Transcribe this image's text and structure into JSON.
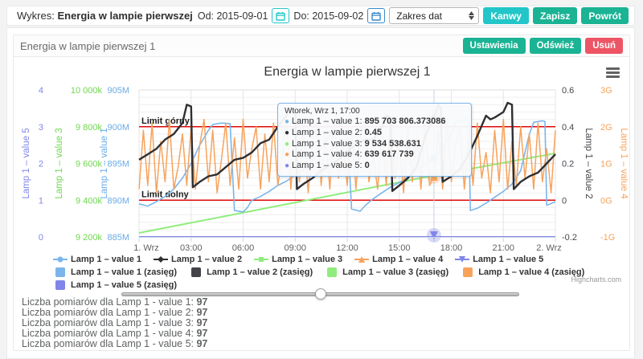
{
  "topbar": {
    "title_prefix": "Wykres:",
    "title_bold": "Energia w lampie pierwszej",
    "od_label": "Od: 2015-09-01",
    "do_label": "Do: 2015-09-02",
    "range_select_value": "Zakres dat",
    "buttons": {
      "kanwy": "Kanwy",
      "zapisz": "Zapisz",
      "powrot": "Powrót"
    }
  },
  "panel": {
    "title": "Energia w lampie pierwszej 1",
    "buttons": {
      "ustawienia": "Ustawienia",
      "odswiez": "Odśwież",
      "usun": "Usuń"
    }
  },
  "colors": {
    "primary": "#1ab394",
    "info": "#23c6c8",
    "danger": "#ed5565",
    "series1": "#7cb5ec",
    "series2": "#2f2f33",
    "series3": "#90ed7d",
    "series4": "#f7a35c",
    "series5": "#8085e9",
    "plotline": "#e00707"
  },
  "chart_data": {
    "type": "line",
    "title": "Energia w lampie pierwszej 1",
    "x_range": [
      0,
      24
    ],
    "x_ticks": [
      {
        "h": 0,
        "label": "1. Wrz"
      },
      {
        "h": 3,
        "label": "03:00"
      },
      {
        "h": 6,
        "label": "06:00"
      },
      {
        "h": 9,
        "label": "09:00"
      },
      {
        "h": 12,
        "label": "12:00"
      },
      {
        "h": 15,
        "label": "15:00"
      },
      {
        "h": 18,
        "label": "18:00"
      },
      {
        "h": 21,
        "label": "21:00"
      },
      {
        "h": 24,
        "label": "2. Wrz"
      }
    ],
    "axes": [
      {
        "id": "v5",
        "side": "left",
        "color": "#8085e9",
        "title": "Lamp 1 – value 5",
        "range": [
          0,
          4
        ],
        "ticks": [
          "0",
          "1",
          "2",
          "3",
          "4"
        ]
      },
      {
        "id": "v3",
        "side": "left",
        "color": "#6fd84f",
        "title": "Lamp 1 – value 3",
        "range": [
          9200,
          10000
        ],
        "ticks": [
          "9 200k",
          "9 400k",
          "9 600k",
          "9 800k",
          "10 000k"
        ]
      },
      {
        "id": "v1",
        "side": "left",
        "color": "#6aabe8",
        "title": "Lamp 1 – value 1",
        "range": [
          885,
          905
        ],
        "ticks": [
          "885M",
          "890M",
          "895M",
          "900M",
          "905M"
        ]
      },
      {
        "id": "v2",
        "side": "right",
        "color": "#47474d",
        "title": "Lamp 1 – value 2",
        "range": [
          -0.2,
          0.6
        ],
        "ticks": [
          "-0.2",
          "0",
          "0.2",
          "0.4",
          "0.6"
        ]
      },
      {
        "id": "v4",
        "side": "right",
        "color": "#f7a35c",
        "title": "Lamp 1 – value 4",
        "range": [
          -1,
          3
        ],
        "ticks": [
          "-1G",
          "0G",
          "1G",
          "2G",
          "3G"
        ]
      }
    ],
    "plot_lines": [
      {
        "axis": "v1",
        "value": 900,
        "label": "Limit górny",
        "color": "#e00707"
      },
      {
        "axis": "v1",
        "value": 890,
        "label": "Limit dolny",
        "color": "#e00707"
      }
    ],
    "series": [
      {
        "name": "Lamp 1 – value 3",
        "axis": "v3",
        "color": "#90ed7d",
        "width": 2,
        "points": [
          [
            0,
            9222
          ],
          [
            17,
            9534.5
          ],
          [
            24,
            9655
          ]
        ]
      },
      {
        "name": "Lamp 1 – value 1",
        "axis": "v1",
        "color": "#7cb5ec",
        "width": 1.6,
        "points": [
          [
            0,
            889.5
          ],
          [
            0.5,
            889.2
          ],
          [
            1,
            889.8
          ],
          [
            1.5,
            890.5
          ],
          [
            2,
            891.5
          ],
          [
            2.5,
            893
          ],
          [
            3,
            895
          ],
          [
            3.5,
            897.5
          ],
          [
            4,
            899.5
          ],
          [
            4.25,
            900.3
          ],
          [
            4.75,
            900.5
          ],
          [
            5.25,
            900.4
          ],
          [
            5.5,
            888.6
          ],
          [
            6,
            888.4
          ],
          [
            6.25,
            889
          ],
          [
            6.5,
            890
          ],
          [
            7,
            890.5
          ],
          [
            7.5,
            891.2
          ],
          [
            8,
            892
          ],
          [
            8.5,
            892.6
          ],
          [
            9,
            893.4
          ],
          [
            9.5,
            894.2
          ],
          [
            10,
            895.5
          ],
          [
            10.5,
            897
          ],
          [
            11,
            898.8
          ],
          [
            11.25,
            900.2
          ],
          [
            11.75,
            900.6
          ],
          [
            12,
            900.4
          ],
          [
            12.25,
            888.8
          ],
          [
            12.75,
            888.5
          ],
          [
            13,
            889.2
          ],
          [
            13.5,
            890.2
          ],
          [
            14,
            891
          ],
          [
            14.5,
            891.8
          ],
          [
            15,
            892.4
          ],
          [
            15.5,
            893.2
          ],
          [
            16,
            894
          ],
          [
            16.5,
            894.8
          ],
          [
            17,
            895.7038
          ],
          [
            17.5,
            897.2
          ],
          [
            18,
            899
          ],
          [
            18.25,
            900.6
          ],
          [
            18.75,
            901
          ],
          [
            19,
            900.8
          ],
          [
            19.1,
            888.6
          ],
          [
            19.5,
            888.9
          ],
          [
            20,
            889.6
          ],
          [
            20.5,
            890.4
          ],
          [
            21,
            891.2
          ],
          [
            21.5,
            892.2
          ],
          [
            22,
            894
          ],
          [
            22.25,
            896.5
          ],
          [
            22.5,
            899
          ],
          [
            22.75,
            900.6
          ],
          [
            23.25,
            900.8
          ],
          [
            23.4,
            900.7
          ],
          [
            23.5,
            889.3
          ],
          [
            24,
            889.8
          ]
        ]
      },
      {
        "name": "Lamp 1 – value 4",
        "axis": "v4",
        "color": "#f7a35c",
        "width": 1.5,
        "x_start": 0,
        "x_step": 0.25,
        "values": [
          0.3,
          1.9,
          0.4,
          2.1,
          0.2,
          1.6,
          0.5,
          2.2,
          0.3,
          0.9,
          1.8,
          0.4,
          2.0,
          0.3,
          1.5,
          2.2,
          0.5,
          1.9,
          0.2,
          1.1,
          2.1,
          0.4,
          1.7,
          0.3,
          2.2,
          0.6,
          1.4,
          2.0,
          0.3,
          1.8,
          0.5,
          2.1,
          0.4,
          1.2,
          2.2,
          0.3,
          1.9,
          0.5,
          2.0,
          0.2,
          1.6,
          2.1,
          0.4,
          1.8,
          0.3,
          2.2,
          0.6,
          1.5,
          0.4,
          2.0,
          0.3,
          1.7,
          2.1,
          0.5,
          1.2,
          0.3,
          1.9,
          0.4,
          2.2,
          0.6,
          1.6,
          0.2,
          2.0,
          0.5,
          1.8,
          0.3,
          2.1,
          0.4,
          0.64,
          1.9,
          0.3,
          2.2,
          0.5,
          1.5,
          2.0,
          0.3,
          1.8,
          0.4,
          2.1,
          0.6,
          1.3,
          0.2,
          1.9,
          0.5,
          2.2,
          0.3,
          1.6,
          0.4,
          2.0,
          0.6,
          1.8,
          0.3,
          2.1,
          0.5,
          1.4,
          0.2,
          1.9
        ]
      },
      {
        "name": "Lamp 1 – value 2",
        "axis": "v2",
        "color": "#2f2f33",
        "width": 2.4,
        "points": [
          [
            0,
            0.22
          ],
          [
            0.5,
            0.25
          ],
          [
            1,
            0.28
          ],
          [
            1.5,
            0.33
          ],
          [
            2,
            0.36
          ],
          [
            2.5,
            0.42
          ],
          [
            2.75,
            0.52
          ],
          [
            3,
            0.51
          ],
          [
            3.1,
            0.07
          ],
          [
            3.5,
            0.1
          ],
          [
            4,
            0.13
          ],
          [
            4.5,
            0.14
          ],
          [
            5,
            0.18
          ],
          [
            5.5,
            0.22
          ],
          [
            6,
            0.23
          ],
          [
            6.5,
            0.26
          ],
          [
            7,
            0.31
          ],
          [
            7.5,
            0.33
          ],
          [
            8,
            0.4
          ],
          [
            8.5,
            0.46
          ],
          [
            8.75,
            0.5
          ],
          [
            9,
            0.49
          ],
          [
            9.1,
            0.06
          ],
          [
            9.5,
            0.09
          ],
          [
            10,
            0.12
          ],
          [
            10.5,
            0.16
          ],
          [
            11,
            0.19
          ],
          [
            11.5,
            0.22
          ],
          [
            12,
            0.27
          ],
          [
            12.5,
            0.3
          ],
          [
            13,
            0.33
          ],
          [
            13.5,
            0.33
          ],
          [
            14,
            0.4
          ],
          [
            14.25,
            0.46
          ],
          [
            14.5,
            0.45
          ],
          [
            14.6,
            0.05
          ],
          [
            15,
            0.08
          ],
          [
            15.5,
            0.12
          ],
          [
            16,
            0.18
          ],
          [
            16.5,
            0.35
          ],
          [
            17,
            0.45
          ],
          [
            17.25,
            0.52
          ],
          [
            17.4,
            0.5
          ],
          [
            17.5,
            0.1
          ],
          [
            18,
            0.13
          ],
          [
            18.5,
            0.17
          ],
          [
            19,
            0.25
          ],
          [
            19.5,
            0.35
          ],
          [
            20,
            0.46
          ],
          [
            20.25,
            0.44
          ],
          [
            20.5,
            0.45
          ],
          [
            21,
            0.48
          ],
          [
            21.25,
            0.53
          ],
          [
            21.5,
            0.52
          ],
          [
            21.6,
            0.06
          ],
          [
            22,
            0.1
          ],
          [
            22.5,
            0.13
          ],
          [
            23,
            0.15
          ],
          [
            23.5,
            0.2
          ],
          [
            24,
            0.25
          ]
        ]
      },
      {
        "name": "Lamp 1 – value 5",
        "axis": "v5",
        "color": "#8085e9",
        "width": 2,
        "points": [
          [
            0,
            0
          ],
          [
            24,
            0
          ]
        ]
      }
    ],
    "crosshair": {
      "x": 17,
      "line_color": "#c8d2e4",
      "points": [
        {
          "axis": "v2",
          "value": 0.45,
          "symbol": "diamond",
          "color": "#2f2f33",
          "halo": "#9a9a9a"
        },
        {
          "axis": "v1",
          "value": 895.7038,
          "symbol": "circle",
          "color": "#7cb5ec",
          "halo": null
        },
        {
          "axis": "v3",
          "value": 9534.54,
          "symbol": "square",
          "color": "#90ed7d",
          "halo": null
        },
        {
          "axis": "v4",
          "value": 0.6396,
          "symbol": "triangle",
          "color": "#f7a35c",
          "halo": "#f7a35c"
        },
        {
          "axis": "v5",
          "value": 0,
          "symbol": "triangle-down",
          "color": "#8085e9",
          "halo": "#8085e9"
        }
      ]
    },
    "legend_position": "bottom-center",
    "grid": true
  },
  "tooltip": {
    "header": "Wtorek, Wrz 1, 17:00",
    "rows": [
      {
        "name": "Lamp 1 – value 1",
        "value": "895 703 806.373086",
        "color": "#7cb5ec"
      },
      {
        "name": "Lamp 1 – value 2",
        "value": "0.45",
        "color": "#2f2f33"
      },
      {
        "name": "Lamp 1 – value 3",
        "value": "9 534 538.631",
        "color": "#90ed7d"
      },
      {
        "name": "Lamp 1 – value 4",
        "value": "639 617 739",
        "color": "#f7a35c"
      },
      {
        "name": "Lamp 1 – value 5",
        "value": "0",
        "color": "#8085e9"
      }
    ]
  },
  "legend": {
    "items": [
      {
        "label": "Lamp 1 – value 1",
        "color": "#7cb5ec",
        "marker": "circle"
      },
      {
        "label": "Lamp 1 – value 2",
        "color": "#2f2f33",
        "marker": "diamond"
      },
      {
        "label": "Lamp 1 – value 3",
        "color": "#90ed7d",
        "marker": "square"
      },
      {
        "label": "Lamp 1 – value 4",
        "color": "#f7a35c",
        "marker": "triangle"
      },
      {
        "label": "Lamp 1 – value 5",
        "color": "#8085e9",
        "marker": "triangle-down"
      },
      {
        "label": "Lamp 1 – value 1 (zasięg)",
        "color": "#7cb5ec",
        "marker": "rect"
      },
      {
        "label": "Lamp 1 – value 2 (zasięg)",
        "color": "#434348",
        "marker": "rect"
      },
      {
        "label": "Lamp 1 – value 3 (zasięg)",
        "color": "#90ed7d",
        "marker": "rect"
      },
      {
        "label": "Lamp 1 – value 4 (zasięg)",
        "color": "#f7a35c",
        "marker": "rect"
      },
      {
        "label": "Lamp 1 – value 5 (zasięg)",
        "color": "#8085e9",
        "marker": "rect"
      }
    ]
  },
  "credit": "Highcharts.com",
  "slider": {
    "position_pct": 50
  },
  "measurements": [
    {
      "label": "Liczba pomiarów dla Lamp 1 - value 1:",
      "value": "97"
    },
    {
      "label": "Liczba pomiarów dla Lamp 1 - value 2:",
      "value": "97"
    },
    {
      "label": "Liczba pomiarów dla Lamp 1 - value 3:",
      "value": "97"
    },
    {
      "label": "Liczba pomiarów dla Lamp 1 - value 4:",
      "value": "97"
    },
    {
      "label": "Liczba pomiarów dla Lamp 1 - value 5:",
      "value": "97"
    }
  ]
}
